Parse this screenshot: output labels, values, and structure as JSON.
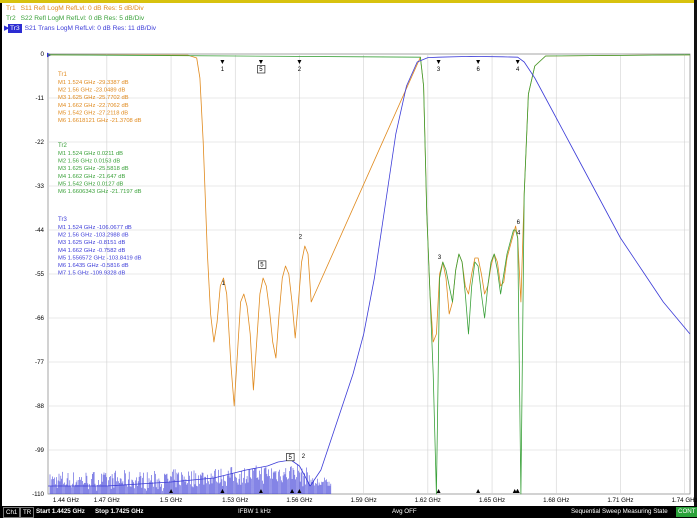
{
  "traces": [
    {
      "id": "Tr1",
      "label": "Tr1",
      "desc": "S11 Refl LogM RefLvl: 0 dB Res: 5 dB/Div",
      "color": "#e08a1e"
    },
    {
      "id": "Tr2",
      "label": "Tr2",
      "desc": "S22 Refl LogM RefLvl: 0 dB Res: 5 dB/Div",
      "color": "#3aa13a"
    },
    {
      "id": "Tr3",
      "label": "Tr3",
      "desc": "S21 Trans LogM RefLvl: 0 dB Res: 11 dB/Div",
      "color": "#3c3cd8",
      "active": true
    }
  ],
  "y_axis_labels": [
    "0",
    "-11",
    "-22",
    "-33",
    "-44",
    "-55",
    "-66",
    "-77",
    "-88",
    "-99",
    "-110"
  ],
  "x_axis_labels": [
    "1.44 GHz",
    "1.47 GHz",
    "1.5 GHz",
    "1.53 GHz",
    "1.56 GHz",
    "1.59 GHz",
    "1.62 GHz",
    "1.65 GHz",
    "1.68 GHz",
    "1.71 GHz",
    "1.74 GHz"
  ],
  "marker_tables": [
    {
      "trace": "Tr1",
      "title": "Tr1",
      "color": "#e08a1e",
      "rows": [
        "M1   1.524 GHz -29.3387 dB",
        "M2   1.56 GHz -23.0489 dB",
        "M3   1.625 GHz -25.7702 dB",
        "M4   1.662 GHz -22.7062 dB",
        "M5   1.542 GHz -27.2118 dB",
        "M6   1.6618121 GHz -21.3708 dB"
      ]
    },
    {
      "trace": "Tr2",
      "title": "Tr2",
      "color": "#3aa13a",
      "rows": [
        "M1   1.524 GHz 0.0211 dB",
        "M2   1.56 GHz 0.0153 dB",
        "M3   1.625 GHz -25.5818 dB",
        "M4   1.662 GHz -21.647 dB",
        "M5   1.542 GHz 0.0127 dB",
        "M6   1.6606343 GHz -21.7197 dB"
      ]
    },
    {
      "trace": "Tr3",
      "title": "Tr3",
      "color": "#3c3cd8",
      "rows": [
        "M1   1.524 GHz -106.0677 dB",
        "M2   1.56 GHz -103.2988 dB",
        "M3   1.625 GHz -0.8151 dB",
        "M4   1.662 GHz -0.7582 dB",
        "M5   1.556572 GHz -103.8419 dB",
        "M6   1.6435 GHz -0.5816 dB",
        "M7   1.5 GHz -109.9328 dB"
      ]
    }
  ],
  "plot_markers": {
    "top": [
      {
        "x": 1.524,
        "label": "1",
        "boxed": false
      },
      {
        "x": 1.542,
        "label": "5",
        "boxed": true
      },
      {
        "x": 1.56,
        "label": "2",
        "boxed": false
      },
      {
        "x": 1.625,
        "label": "3",
        "boxed": false
      },
      {
        "x": 1.6435,
        "label": "6",
        "boxed": false
      },
      {
        "x": 1.662,
        "label": "4",
        "boxed": false
      }
    ],
    "s11": [
      {
        "x": 1.524,
        "y": -57.8,
        "label": "1",
        "boxed": false
      },
      {
        "x": 1.542,
        "y": -53.1,
        "label": "5",
        "boxed": true
      },
      {
        "x": 1.56,
        "y": -46.1,
        "label": "2",
        "boxed": false
      },
      {
        "x": 1.625,
        "y": -51.3,
        "label": "3",
        "boxed": false
      },
      {
        "x": 1.6618,
        "y": -42.5,
        "label": "6",
        "boxed": false
      },
      {
        "x": 1.662,
        "y": -45.1,
        "label": "4",
        "boxed": false
      }
    ],
    "s21": [
      {
        "x": 1.556572,
        "y": -101.2,
        "label": "5",
        "boxed": true
      },
      {
        "x": 1.56,
        "y": -101.0,
        "label": "2",
        "boxed": false
      }
    ]
  },
  "status": {
    "channel": "Ch1",
    "trace": "TR",
    "start": "Start 1.4425 GHz",
    "stop": "Stop 1.7425 GHz",
    "ifbw": "IFBW 1 kHz",
    "avg": "Avg OFF",
    "state": "Sequential Sweep Measuring State",
    "badge": "CONT"
  },
  "chart_data": {
    "type": "line",
    "x_range": [
      1.4425,
      1.7425
    ],
    "ylim": [
      -110,
      0
    ],
    "x_unit": "GHz",
    "y_unit": "dB",
    "grid": true,
    "series": [
      {
        "name": "S11 Refl",
        "color": "#e08a1e",
        "x": [
          1.4425,
          1.508,
          1.512,
          1.5135,
          1.515,
          1.517,
          1.5185,
          1.52,
          1.5215,
          1.523,
          1.5245,
          1.526,
          1.528,
          1.5295,
          1.531,
          1.5325,
          1.534,
          1.5355,
          1.537,
          1.5385,
          1.54,
          1.5415,
          1.543,
          1.5445,
          1.546,
          1.5475,
          1.549,
          1.5505,
          1.552,
          1.5535,
          1.555,
          1.5565,
          1.558,
          1.5595,
          1.561,
          1.5625,
          1.564,
          1.5655,
          1.6165,
          1.618,
          1.6195,
          1.621,
          1.6225,
          1.624,
          1.6255,
          1.627,
          1.6285,
          1.63,
          1.6315,
          1.633,
          1.6345,
          1.636,
          1.6375,
          1.639,
          1.6405,
          1.642,
          1.6435,
          1.645,
          1.6465,
          1.648,
          1.6495,
          1.651,
          1.6525,
          1.654,
          1.6555,
          1.657,
          1.6585,
          1.66,
          1.661,
          1.662,
          1.6635,
          1.665,
          1.667,
          1.67,
          1.675,
          1.7425
        ],
        "y": [
          -0.2,
          -0.3,
          -1,
          -6,
          -22,
          -50,
          -65,
          -72,
          -67,
          -58,
          -56,
          -60,
          -78,
          -88,
          -75,
          -62,
          -60,
          -63,
          -70,
          -84,
          -72,
          -60,
          -56,
          -58,
          -64,
          -72,
          -76,
          -65,
          -56,
          -53,
          -55,
          -62,
          -71,
          -62,
          -52,
          -48,
          -50,
          -62,
          -0.8,
          -8,
          -40,
          -60,
          -72,
          -70,
          -55,
          -52,
          -56,
          -65,
          -62,
          -54,
          -50,
          -52,
          -58,
          -60,
          -55,
          -51,
          -51,
          -55,
          -60,
          -58,
          -53,
          -50,
          -52,
          -58,
          -57,
          -51,
          -48,
          -45,
          -43,
          -46,
          -62,
          -35,
          -10,
          -3,
          -0.5,
          -0.2
        ]
      },
      {
        "name": "S22 Refl",
        "color": "#3aa13a",
        "x": [
          1.4425,
          1.6165,
          1.618,
          1.6195,
          1.621,
          1.6225,
          1.624,
          1.6255,
          1.627,
          1.6285,
          1.63,
          1.6315,
          1.633,
          1.6345,
          1.636,
          1.6375,
          1.639,
          1.6405,
          1.642,
          1.6435,
          1.645,
          1.6465,
          1.648,
          1.6495,
          1.651,
          1.6525,
          1.654,
          1.6555,
          1.657,
          1.6585,
          1.66,
          1.661,
          1.662,
          1.6635,
          1.665,
          1.667,
          1.67,
          1.675,
          1.7425
        ],
        "y": [
          -0.2,
          -0.8,
          -8,
          -40,
          -60,
          -80,
          -110,
          -56,
          -52,
          -54,
          -58,
          -62,
          -54,
          -50,
          -52,
          -60,
          -70,
          -58,
          -52,
          -53,
          -60,
          -66,
          -58,
          -52,
          -50,
          -54,
          -60,
          -55,
          -50,
          -47,
          -44,
          -44,
          -46,
          -110,
          -35,
          -10,
          -3,
          -0.5,
          -0.2
        ]
      },
      {
        "name": "S21 Trans",
        "color": "#3c3cd8",
        "x": [
          1.4425,
          1.47,
          1.5,
          1.52,
          1.535,
          1.545,
          1.55,
          1.556,
          1.56,
          1.565,
          1.57,
          1.575,
          1.58,
          1.585,
          1.59,
          1.595,
          1.6,
          1.605,
          1.61,
          1.615,
          1.62,
          1.625,
          1.64,
          1.655,
          1.662,
          1.665,
          1.67,
          1.68,
          1.69,
          1.7,
          1.71,
          1.72,
          1.73,
          1.7425
        ],
        "y": [
          -108,
          -108,
          -107,
          -106,
          -104,
          -103,
          -102,
          -101.5,
          -103,
          -108,
          -104,
          -96,
          -88,
          -80,
          -70,
          -56,
          -38,
          -20,
          -8,
          -2,
          -0.9,
          -0.8,
          -0.6,
          -0.7,
          -0.8,
          -2,
          -6,
          -16,
          -26,
          -36,
          -46,
          -54,
          -62,
          -70
        ]
      }
    ]
  }
}
